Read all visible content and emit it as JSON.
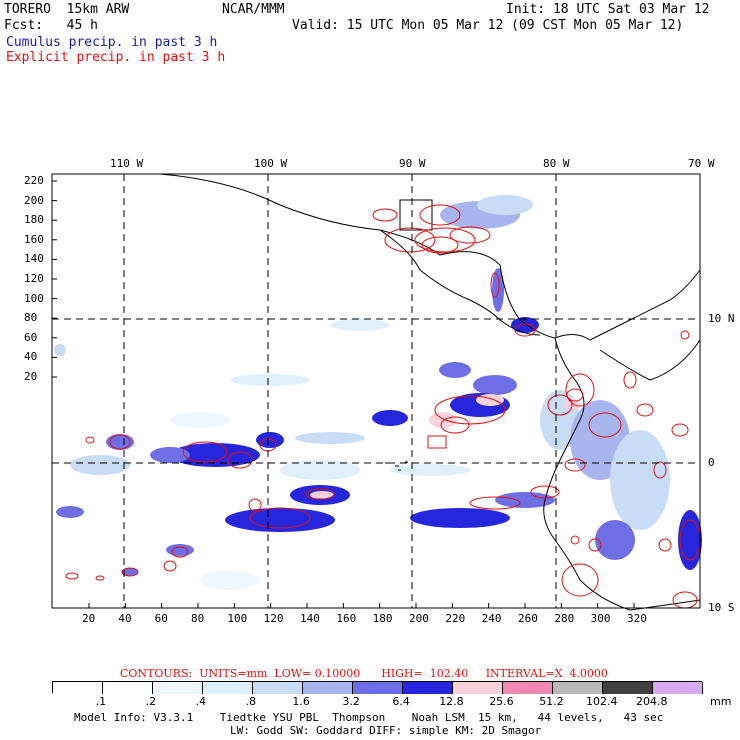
{
  "header": {
    "model": "TORERO  15km ARW",
    "org": "NCAR/MMM",
    "init": "Init: 18 UTC Sat 03 Mar 12",
    "fcst": "Fcst:   45 h",
    "valid": "Valid: 15 UTC Mon 05 Mar 12 (09 CST Mon 05 Mar 12)",
    "legend_cumulus": "Cumulus precip. in past 3 h",
    "legend_explicit": "Explicit precip. in past 3 h"
  },
  "axes": {
    "top_lon": [
      "110 W",
      "100 W",
      "90 W",
      "80 W",
      "70 W"
    ],
    "right_lat": [
      "10 N",
      "0",
      "10 S"
    ],
    "left_y": [
      "220",
      "200",
      "180",
      "160",
      "140",
      "120",
      "100",
      "80",
      "60",
      "40",
      "20"
    ],
    "bottom_x": [
      "20",
      "40",
      "60",
      "80",
      "100",
      "120",
      "140",
      "160",
      "180",
      "200",
      "220",
      "240",
      "260",
      "280",
      "300",
      "320"
    ]
  },
  "contours_line": {
    "label": "CONTOURS:  UNITS=mm  LOW= 0.10000      HIGH=  102.40     INTERVAL=X  4.0000"
  },
  "colorbar": {
    "labels": [
      ".1",
      ".2",
      ".4",
      ".8",
      "1.6",
      "3.2",
      "6.4",
      "12.8",
      "25.6",
      "51.2",
      "102.4",
      "204.8"
    ],
    "unit": "mm",
    "colors": [
      "#ffffff",
      "#ffffff",
      "#eef6ff",
      "#dff0fb",
      "#c8dcf5",
      "#a8b4ee",
      "#6e6ee6",
      "#2626dd",
      "#f7d2dc",
      "#f088b0",
      "#b8b8b8",
      "#404040",
      "#d8aaf0"
    ]
  },
  "footer": {
    "line1": "Model Info: V3.3.1    Tiedtke YSU PBL  Thompson    Noah LSM  15 km,   44 levels,   43 sec",
    "line2": "LW: Godd SW: Goddard DIFF: simple KM: 2D Smagor"
  }
}
